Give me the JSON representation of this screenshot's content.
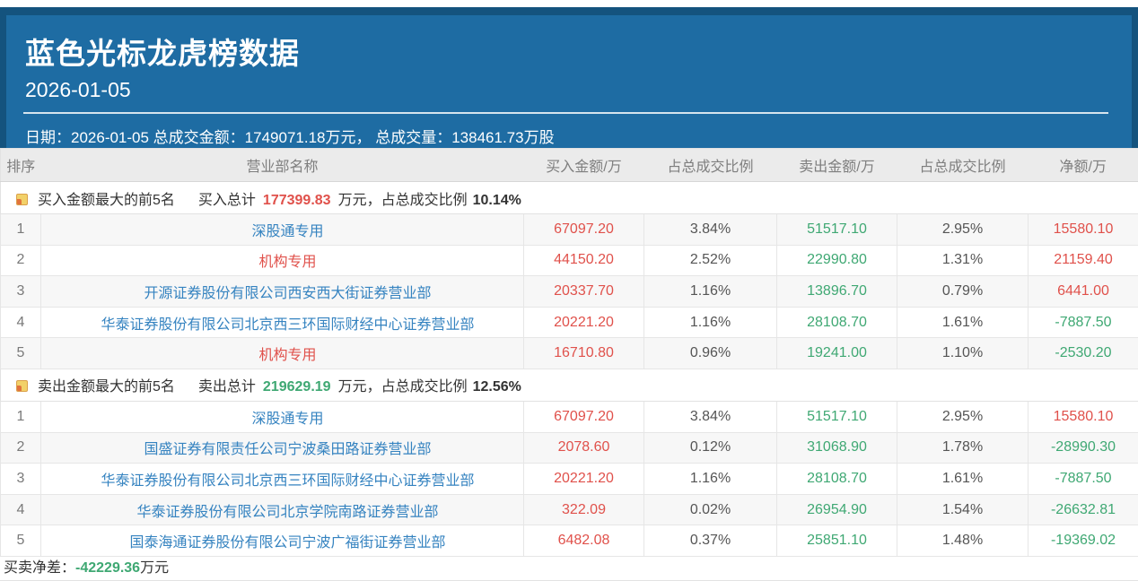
{
  "header": {
    "title": "蓝色光标龙虎榜数据",
    "date": "2026-01-05",
    "info": "日期：2026-01-05 总成交金额：1749071.18万元， 总成交量：138461.73万股"
  },
  "colors": {
    "hero_blue": "#1e6ca3",
    "hero_dark_border": "#14537e",
    "thead_bg": "#ebebeb",
    "red": "#e0514b",
    "green": "#3fa873",
    "blue": "#3583c0",
    "shaded_row": "#f7f7f7"
  },
  "table": {
    "columns": [
      "排序",
      "营业部名称",
      "买入金额/万",
      "占总成交比例",
      "卖出金额/万",
      "占总成交比例",
      "净额/万"
    ]
  },
  "sections": [
    {
      "title": "买入金额最大的前5名",
      "total_label": "买入总计",
      "total_value": "177399.83",
      "total_color": "red",
      "tail": "万元，占总成交比例",
      "pct": "10.14%",
      "rows": [
        {
          "rank": "1",
          "name": "深股通专用",
          "name_color": "blue",
          "buy": "67097.20",
          "buy_pct": "3.84%",
          "sell": "51517.10",
          "sell_pct": "2.95%",
          "net": "15580.10"
        },
        {
          "rank": "2",
          "name": "机构专用",
          "name_color": "red",
          "buy": "44150.20",
          "buy_pct": "2.52%",
          "sell": "22990.80",
          "sell_pct": "1.31%",
          "net": "21159.40"
        },
        {
          "rank": "3",
          "name": "开源证券股份有限公司西安西大街证券营业部",
          "name_color": "blue",
          "buy": "20337.70",
          "buy_pct": "1.16%",
          "sell": "13896.70",
          "sell_pct": "0.79%",
          "net": "6441.00"
        },
        {
          "rank": "4",
          "name": "华泰证券股份有限公司北京西三环国际财经中心证券营业部",
          "name_color": "blue",
          "buy": "20221.20",
          "buy_pct": "1.16%",
          "sell": "28108.70",
          "sell_pct": "1.61%",
          "net": "-7887.50"
        },
        {
          "rank": "5",
          "name": "机构专用",
          "name_color": "red",
          "buy": "16710.80",
          "buy_pct": "0.96%",
          "sell": "19241.00",
          "sell_pct": "1.10%",
          "net": "-2530.20"
        }
      ]
    },
    {
      "title": "卖出金额最大的前5名",
      "total_label": "卖出总计",
      "total_value": "219629.19",
      "total_color": "green",
      "tail": "万元，占总成交比例",
      "pct": "12.56%",
      "rows": [
        {
          "rank": "1",
          "name": "深股通专用",
          "name_color": "blue",
          "buy": "67097.20",
          "buy_pct": "3.84%",
          "sell": "51517.10",
          "sell_pct": "2.95%",
          "net": "15580.10"
        },
        {
          "rank": "2",
          "name": "国盛证券有限责任公司宁波桑田路证券营业部",
          "name_color": "blue",
          "buy": "2078.60",
          "buy_pct": "0.12%",
          "sell": "31068.90",
          "sell_pct": "1.78%",
          "net": "-28990.30"
        },
        {
          "rank": "3",
          "name": "华泰证券股份有限公司北京西三环国际财经中心证券营业部",
          "name_color": "blue",
          "buy": "20221.20",
          "buy_pct": "1.16%",
          "sell": "28108.70",
          "sell_pct": "1.61%",
          "net": "-7887.50"
        },
        {
          "rank": "4",
          "name": "华泰证券股份有限公司北京学院南路证券营业部",
          "name_color": "blue",
          "buy": "322.09",
          "buy_pct": "0.02%",
          "sell": "26954.90",
          "sell_pct": "1.54%",
          "net": "-26632.81"
        },
        {
          "rank": "5",
          "name": "国泰海通证券股份有限公司宁波广福街证券营业部",
          "name_color": "blue",
          "buy": "6482.08",
          "buy_pct": "0.37%",
          "sell": "25851.10",
          "sell_pct": "1.48%",
          "net": "-19369.02"
        }
      ]
    }
  ],
  "footer": {
    "label": "买卖净差：",
    "value": "-42229.36",
    "unit": "万元"
  }
}
